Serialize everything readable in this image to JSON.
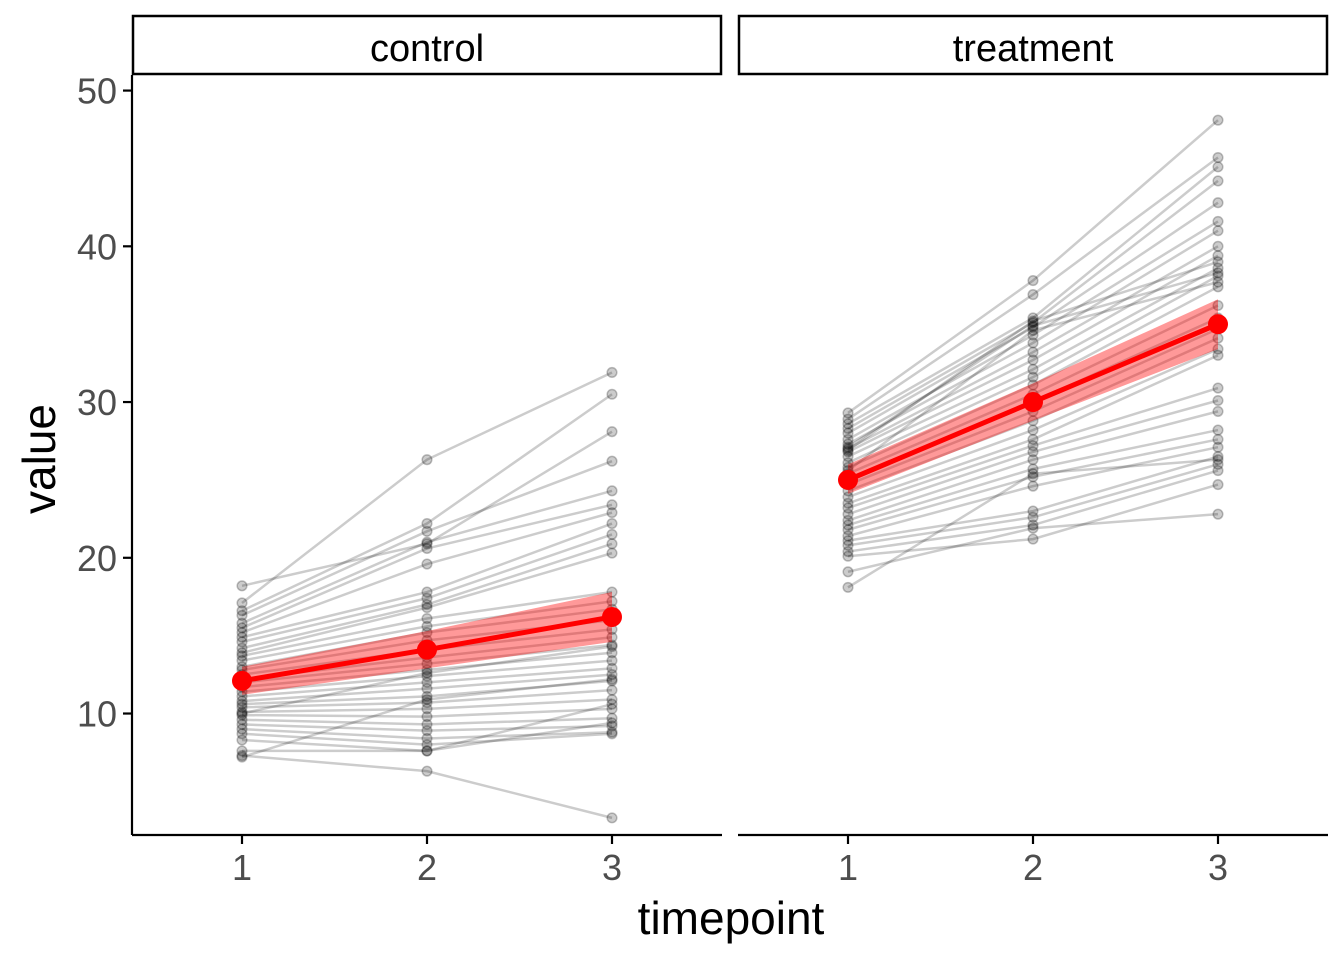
{
  "chart_data": {
    "type": "line",
    "facets": [
      "control",
      "treatment"
    ],
    "xlabel": "timepoint",
    "ylabel": "value",
    "x_categories": [
      1,
      2,
      3
    ],
    "y_ticks": [
      10,
      20,
      30,
      40,
      50
    ],
    "ylim": [
      2.2,
      51.0
    ],
    "grid": false,
    "panels": [
      {
        "facet": "control",
        "subjects": [
          [
            18.2,
            20.9,
            28.1
          ],
          [
            17.1,
            26.3,
            31.9
          ],
          [
            16.6,
            22.2,
            30.5
          ],
          [
            16.3,
            21.7,
            26.2
          ],
          [
            15.8,
            21.0,
            24.3
          ],
          [
            15.5,
            20.6,
            23.4
          ],
          [
            15.2,
            19.6,
            22.9
          ],
          [
            14.9,
            17.8,
            22.2
          ],
          [
            14.6,
            17.4,
            21.5
          ],
          [
            14.2,
            17.0,
            20.9
          ],
          [
            13.9,
            16.8,
            20.3
          ],
          [
            13.7,
            16.1,
            17.8
          ],
          [
            13.4,
            15.6,
            17.2
          ],
          [
            13.0,
            15.2,
            16.7
          ],
          [
            12.8,
            14.7,
            16.0
          ],
          [
            12.5,
            14.1,
            15.4
          ],
          [
            12.2,
            13.6,
            14.9
          ],
          [
            12.0,
            13.2,
            14.4
          ],
          [
            11.7,
            12.8,
            13.9
          ],
          [
            11.4,
            12.4,
            13.4
          ],
          [
            11.1,
            12.0,
            12.9
          ],
          [
            10.8,
            11.6,
            12.5
          ],
          [
            10.6,
            11.1,
            12.1
          ],
          [
            10.4,
            10.7,
            11.5
          ],
          [
            10.1,
            10.3,
            10.9
          ],
          [
            9.9,
            9.8,
            10.3
          ],
          [
            9.6,
            9.3,
            9.7
          ],
          [
            9.3,
            8.9,
            9.2
          ],
          [
            9.0,
            8.4,
            8.8
          ],
          [
            8.7,
            8.0,
            8.7
          ],
          [
            8.3,
            7.6,
            9.4
          ],
          [
            7.6,
            7.6,
            10.6
          ],
          [
            7.3,
            6.3,
            3.3
          ],
          [
            7.2,
            10.9,
            12.2
          ],
          [
            10.0,
            12.6,
            14.3
          ]
        ],
        "mean": [
          12.1,
          14.1,
          16.2
        ],
        "ci_lower": [
          11.2,
          12.9,
          14.6
        ],
        "ci_upper": [
          13.0,
          15.3,
          17.8
        ]
      },
      {
        "facet": "treatment",
        "subjects": [
          [
            29.3,
            37.8,
            48.1
          ],
          [
            28.9,
            36.9,
            45.7
          ],
          [
            28.6,
            35.4,
            45.1
          ],
          [
            28.3,
            35.1,
            44.2
          ],
          [
            28.0,
            34.8,
            42.8
          ],
          [
            27.6,
            34.3,
            41.6
          ],
          [
            27.3,
            33.8,
            41.0
          ],
          [
            27.0,
            33.2,
            40.0
          ],
          [
            26.8,
            32.7,
            39.4
          ],
          [
            26.5,
            32.1,
            38.6
          ],
          [
            26.1,
            31.6,
            38.1
          ],
          [
            25.8,
            31.1,
            37.4
          ],
          [
            25.4,
            30.5,
            36.2
          ],
          [
            25.0,
            30.0,
            35.4
          ],
          [
            24.7,
            29.4,
            34.7
          ],
          [
            24.3,
            28.8,
            34.1
          ],
          [
            23.9,
            28.2,
            33.4
          ],
          [
            23.5,
            27.6,
            33.0
          ],
          [
            23.2,
            27.2,
            30.9
          ],
          [
            22.8,
            26.8,
            30.1
          ],
          [
            22.4,
            26.3,
            29.4
          ],
          [
            22.1,
            25.7,
            28.2
          ],
          [
            21.8,
            25.2,
            27.6
          ],
          [
            21.4,
            24.6,
            27.1
          ],
          [
            21.1,
            23.0,
            26.5
          ],
          [
            20.8,
            22.6,
            26.0
          ],
          [
            20.4,
            22.1,
            25.6
          ],
          [
            20.1,
            21.2,
            24.7
          ],
          [
            19.1,
            21.9,
            22.8
          ],
          [
            18.1,
            25.4,
            26.3
          ],
          [
            27.1,
            34.9,
            38.3
          ],
          [
            26.9,
            35.2,
            39.0
          ],
          [
            25.6,
            34.6,
            37.7
          ]
        ],
        "mean": [
          25.0,
          30.0,
          35.0
        ],
        "ci_lower": [
          24.1,
          28.8,
          33.4
        ],
        "ci_upper": [
          26.0,
          31.2,
          36.6
        ]
      }
    ]
  },
  "colors": {
    "subject_line": "#000000",
    "subject_point": "#000000",
    "mean_line": "#ff0000",
    "ci_ribbon": "#ff0000",
    "axis": "#000000",
    "tick_text": "#4d4d4d"
  }
}
